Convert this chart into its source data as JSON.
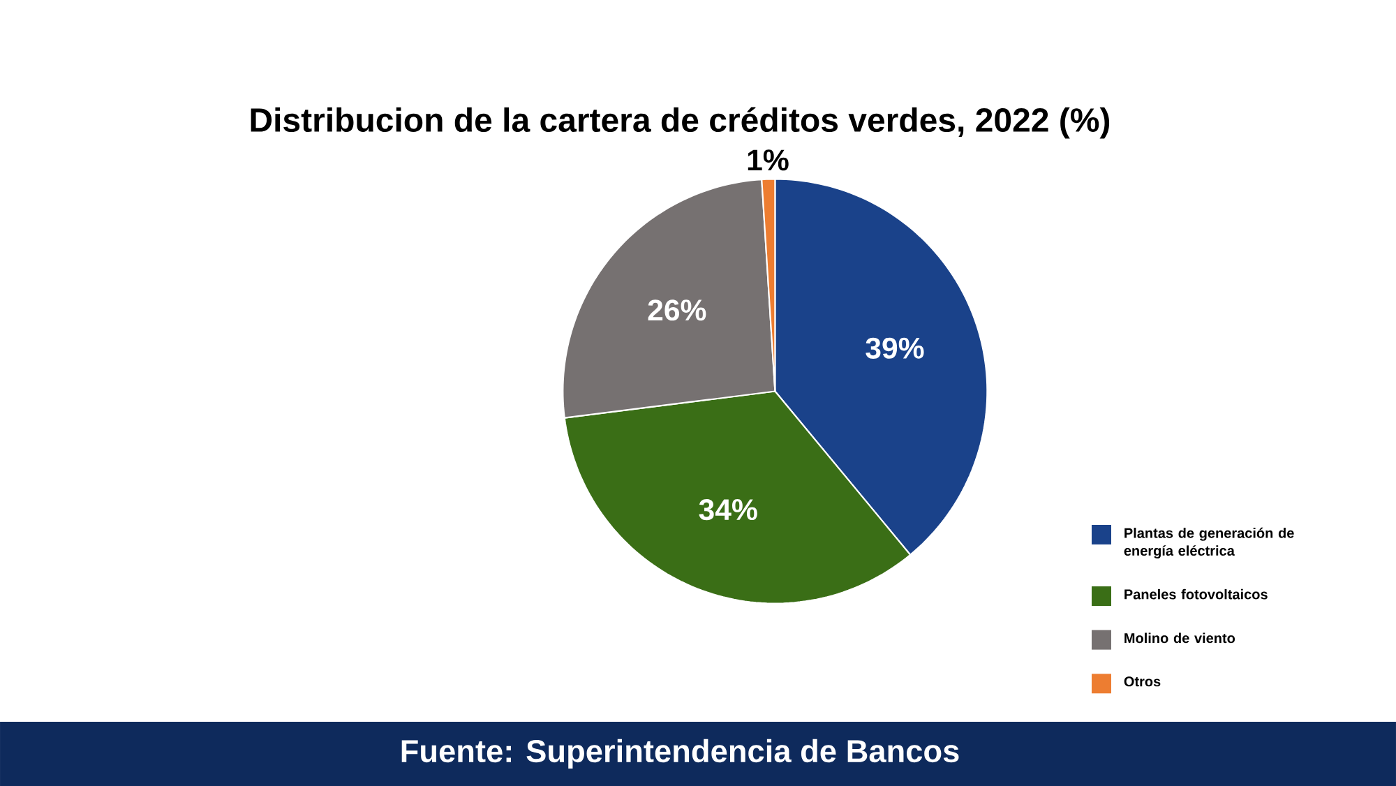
{
  "chart_data": {
    "type": "pie",
    "title": "Distribucion de la cartera de créditos verdes, 2022 (%)",
    "categories": [
      "Plantas de generación de energía eléctrica",
      "Paneles fotovoltaicos",
      "Molino de viento",
      "Otros"
    ],
    "values": [
      39,
      34,
      26,
      1
    ],
    "colors": [
      "#1a428a",
      "#3a6e16",
      "#767171",
      "#ed7d31"
    ],
    "value_labels": [
      "39%",
      "34%",
      "26%",
      "1%"
    ],
    "legend": "bottom right",
    "annotations": [
      "Fuente: Superintendencia de Bancos"
    ]
  }
}
